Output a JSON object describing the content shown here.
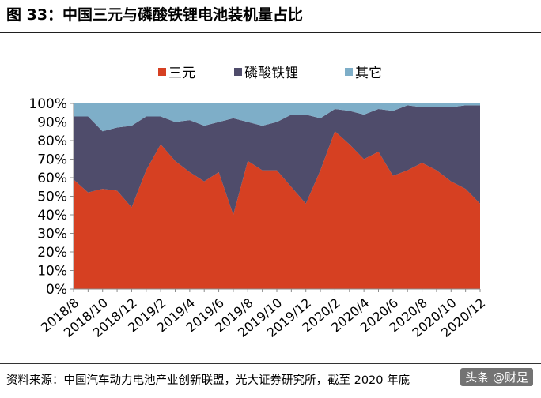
{
  "header": {
    "title": "图 33：中国三元与磷酸铁锂电池装机量占比"
  },
  "footer": {
    "source": "资料来源：中国汽车动力电池产业创新联盟，光大证券研究所，截至 2020 年底",
    "watermark": "头条 @财是"
  },
  "chart_data": {
    "type": "area",
    "stacked": true,
    "x": [
      "2018/8",
      "2018/9",
      "2018/10",
      "2018/11",
      "2018/12",
      "2019/1",
      "2019/2",
      "2019/3",
      "2019/4",
      "2019/5",
      "2019/6",
      "2019/7",
      "2019/8",
      "2019/9",
      "2019/10",
      "2019/11",
      "2019/12",
      "2020/1",
      "2020/2",
      "2020/3",
      "2020/4",
      "2020/5",
      "2020/6",
      "2020/7",
      "2020/8",
      "2020/9",
      "2020/10",
      "2020/11",
      "2020/12"
    ],
    "tick_labels": [
      "2018/8",
      "2018/10",
      "2018/12",
      "2019/2",
      "2019/4",
      "2019/6",
      "2019/8",
      "2019/10",
      "2019/12",
      "2020/2",
      "2020/4",
      "2020/6",
      "2020/8",
      "2020/10",
      "2020/12"
    ],
    "series": [
      {
        "name": "三元",
        "color": "#d64022",
        "values": [
          59,
          52,
          54,
          53,
          44,
          64,
          78,
          69,
          63,
          58,
          63,
          40,
          69,
          64,
          64,
          55,
          46,
          64,
          85,
          78,
          70,
          74,
          61,
          64,
          68,
          64,
          58,
          54,
          46
        ]
      },
      {
        "name": "磷酸铁锂",
        "color": "#4f4c6b",
        "values": [
          34,
          41,
          31,
          34,
          44,
          29,
          15,
          21,
          28,
          30,
          27,
          52,
          21,
          24,
          26,
          39,
          48,
          28,
          12,
          18,
          24,
          23,
          35,
          35,
          30,
          34,
          40,
          45,
          53
        ]
      },
      {
        "name": "其它",
        "color": "#7eaec8",
        "values": [
          7,
          7,
          15,
          13,
          12,
          7,
          7,
          10,
          9,
          12,
          10,
          8,
          10,
          12,
          10,
          6,
          6,
          8,
          3,
          4,
          6,
          3,
          4,
          1,
          2,
          2,
          2,
          1,
          1
        ]
      }
    ],
    "ylim": [
      0,
      100
    ],
    "yticks": [
      "0%",
      "10%",
      "20%",
      "30%",
      "40%",
      "50%",
      "60%",
      "70%",
      "80%",
      "90%",
      "100%"
    ],
    "legend": "top",
    "grid": false
  }
}
